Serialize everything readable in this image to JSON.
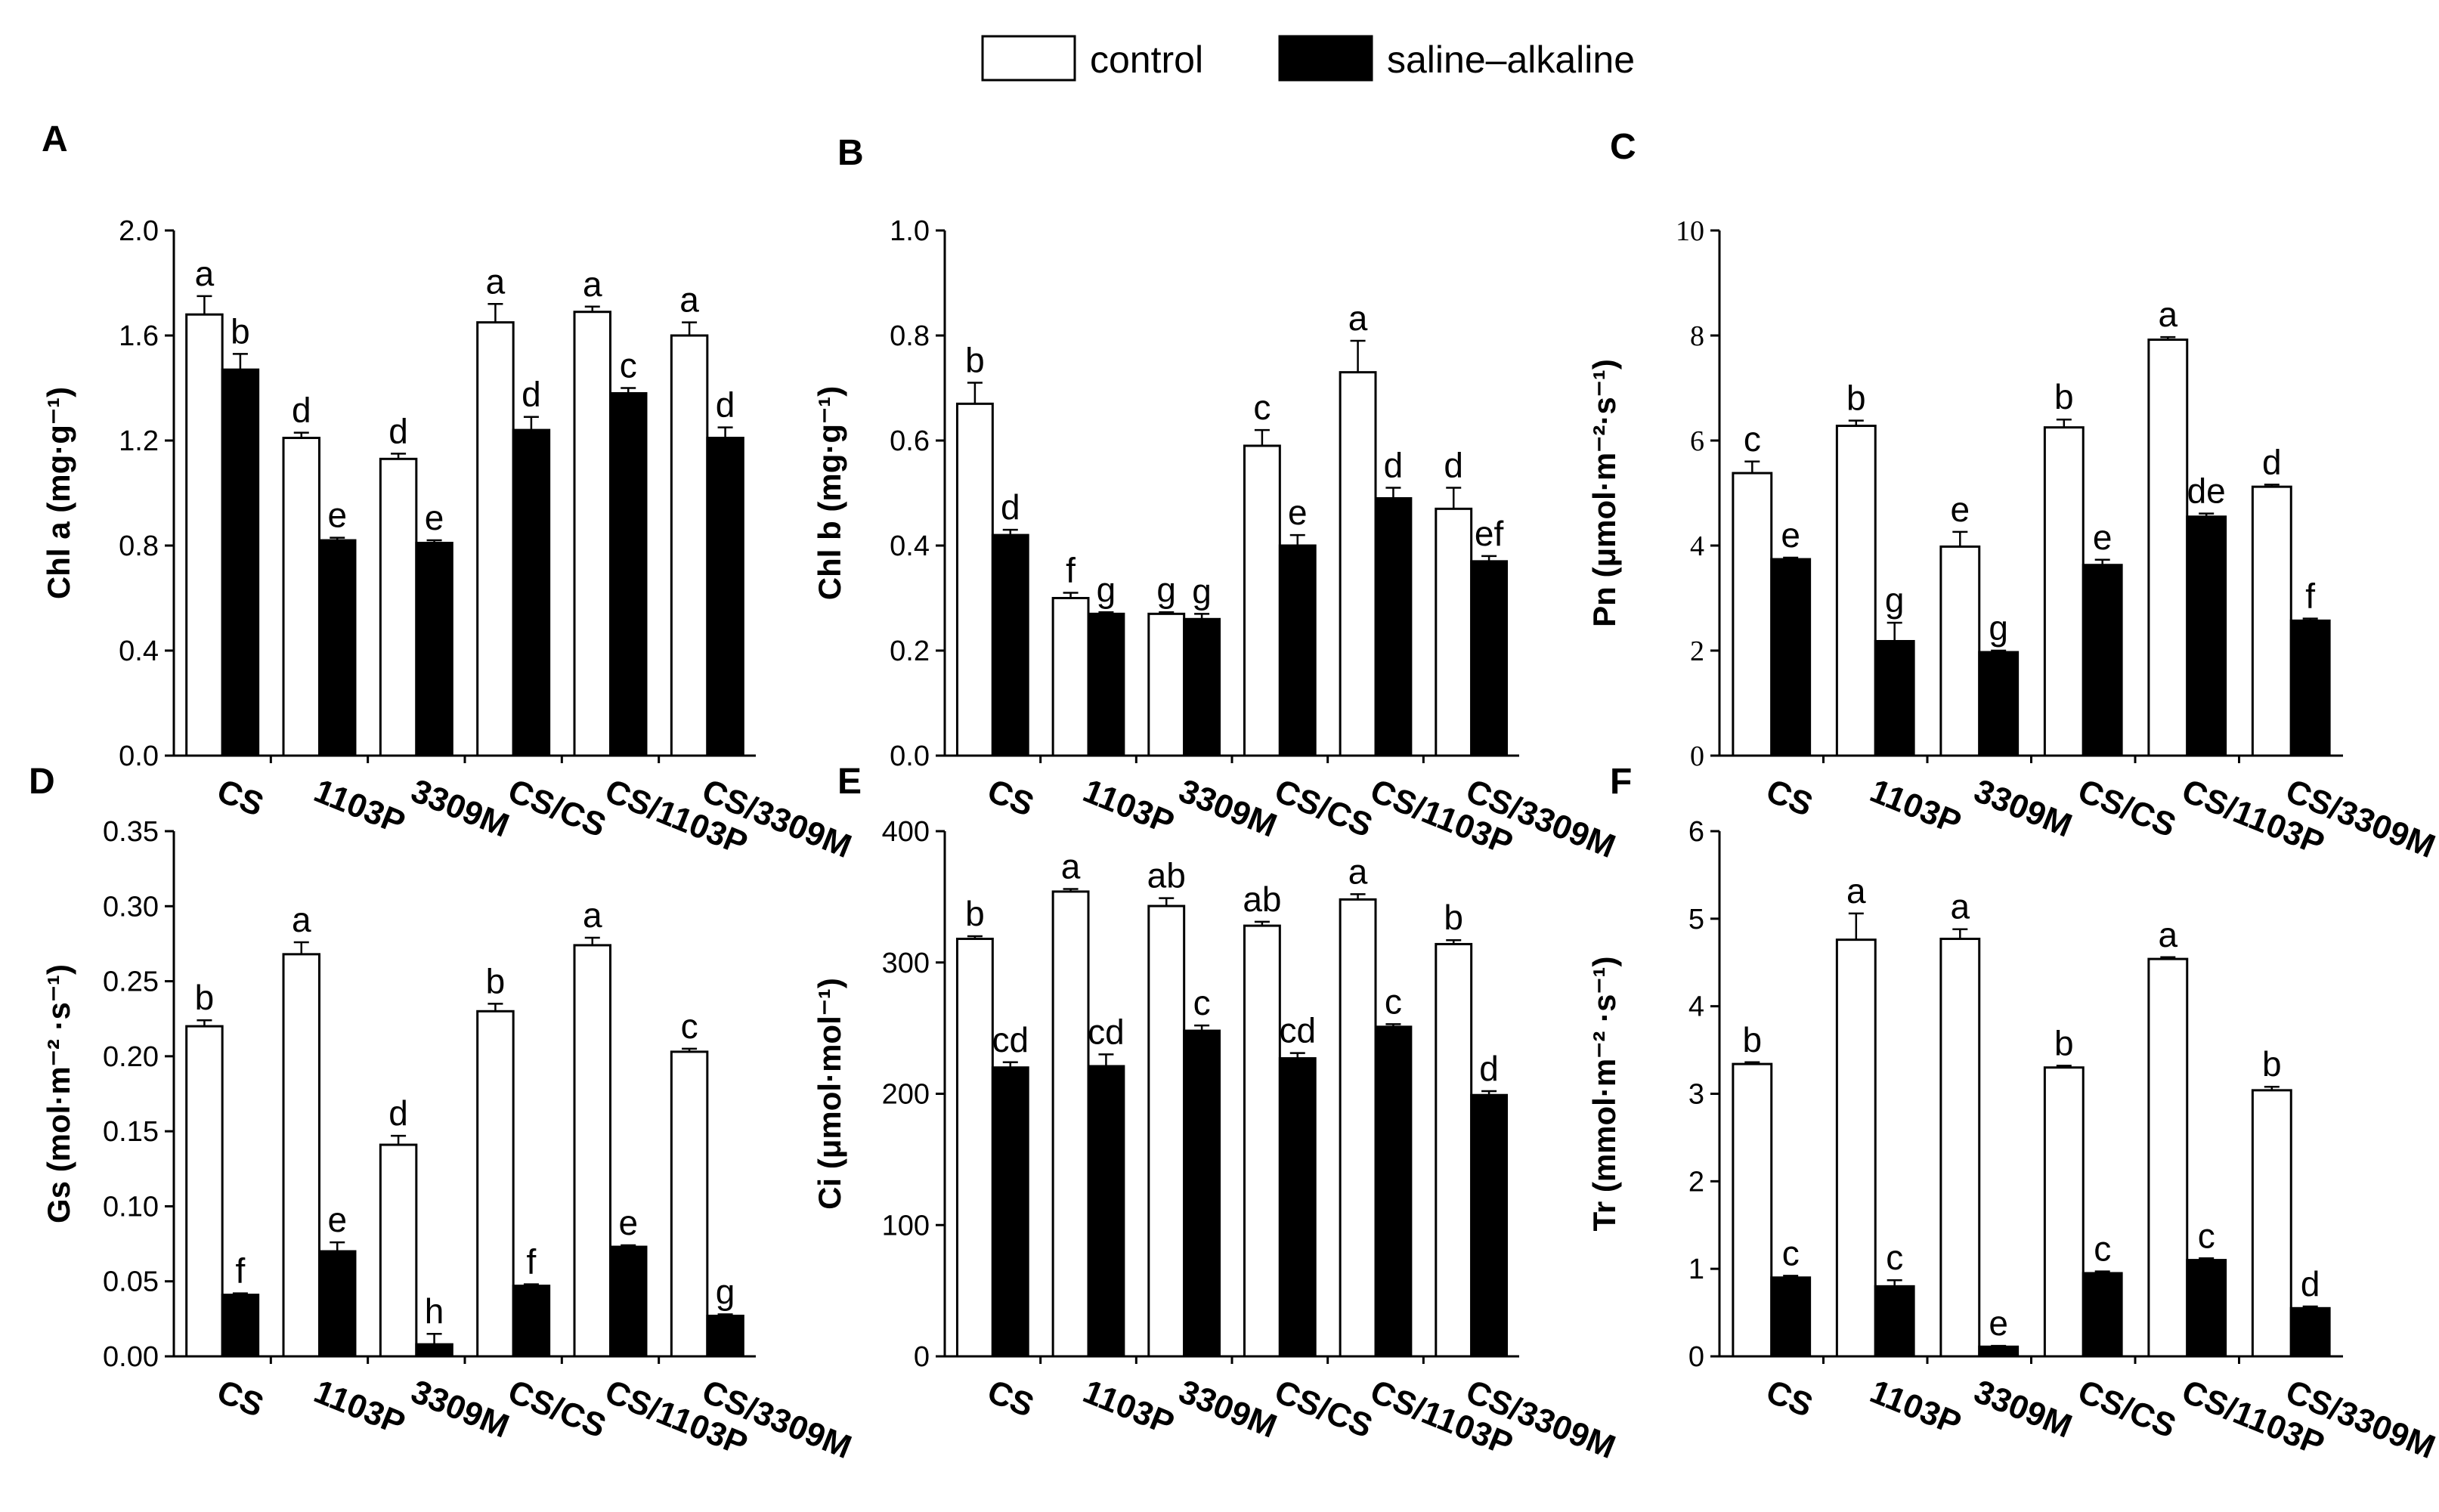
{
  "legend": [
    {
      "name": "control",
      "color": "#ffffff"
    },
    {
      "name": "saline–alkaline",
      "color": "#000000"
    }
  ],
  "chart_data": [
    {
      "panel": "A",
      "type": "bar",
      "categories": [
        "CS",
        "1103P",
        "3309M",
        "CS/CS",
        "CS/1103P",
        "CS/3309M"
      ],
      "ylabel": "Chl a (mg·g⁻¹)",
      "ylim": [
        0,
        2.0
      ],
      "yticks": [
        "0.0",
        "0.4",
        "0.8",
        "1.2",
        "1.6",
        "2.0"
      ],
      "series": [
        {
          "name": "control",
          "values": [
            1.68,
            1.21,
            1.13,
            1.65,
            1.69,
            1.6
          ],
          "errors": [
            0.07,
            0.02,
            0.02,
            0.07,
            0.02,
            0.05
          ],
          "letters": [
            "a",
            "d",
            "d",
            "a",
            "a",
            "a"
          ]
        },
        {
          "name": "saline–alkaline",
          "values": [
            1.47,
            0.82,
            0.81,
            1.24,
            1.38,
            1.21
          ],
          "errors": [
            0.06,
            0.01,
            0.01,
            0.05,
            0.02,
            0.04
          ],
          "letters": [
            "b",
            "e",
            "e",
            "d",
            "c",
            "d"
          ]
        }
      ]
    },
    {
      "panel": "B",
      "type": "bar",
      "categories": [
        "CS",
        "1103P",
        "3309M",
        "CS/CS",
        "CS/1103P",
        "CS/3309M"
      ],
      "ylabel": "Chl b (mg·g⁻¹)",
      "ylim": [
        0,
        1.0
      ],
      "yticks": [
        "0.0",
        "0.2",
        "0.4",
        "0.6",
        "0.8",
        "1.0"
      ],
      "series": [
        {
          "name": "control",
          "values": [
            0.67,
            0.3,
            0.27,
            0.59,
            0.73,
            0.47
          ],
          "errors": [
            0.04,
            0.01,
            0.003,
            0.03,
            0.06,
            0.04
          ],
          "letters": [
            "b",
            "f",
            "g",
            "c",
            "a",
            "d"
          ]
        },
        {
          "name": "saline–alkaline",
          "values": [
            0.42,
            0.27,
            0.26,
            0.4,
            0.49,
            0.37
          ],
          "errors": [
            0.01,
            0.003,
            0.01,
            0.02,
            0.02,
            0.01
          ],
          "letters": [
            "d",
            "g",
            "g",
            "e",
            "d",
            "ef"
          ]
        }
      ]
    },
    {
      "panel": "C",
      "type": "bar",
      "categories": [
        "CS",
        "1103P",
        "3309M",
        "CS/CS",
        "CS/1103P",
        "CS/3309M"
      ],
      "ylabel": "Pn (μmol·m⁻²·s⁻¹)",
      "ylim": [
        0,
        10
      ],
      "yticks": [
        "0",
        "2",
        "4",
        "6",
        "8",
        "10"
      ],
      "series": [
        {
          "name": "control",
          "values": [
            5.38,
            6.28,
            3.98,
            6.25,
            7.92,
            5.12
          ],
          "errors": [
            0.22,
            0.1,
            0.28,
            0.15,
            0.05,
            0.04
          ],
          "letters": [
            "c",
            "b",
            "e",
            "b",
            "a",
            "d"
          ]
        },
        {
          "name": "saline–alkaline",
          "values": [
            3.74,
            2.18,
            1.97,
            3.63,
            4.55,
            2.57
          ],
          "errors": [
            0.03,
            0.35,
            0.03,
            0.1,
            0.06,
            0.04
          ],
          "letters": [
            "e",
            "g",
            "g",
            "e",
            "de",
            "f"
          ]
        }
      ]
    },
    {
      "panel": "D",
      "type": "bar",
      "categories": [
        "CS",
        "1103P",
        "3309M",
        "CS/CS",
        "CS/1103P",
        "CS/3309M"
      ],
      "ylabel": "Gs (mol·m⁻² ·s⁻¹)",
      "ylim": [
        0,
        0.35
      ],
      "yticks": [
        "0.00",
        "0.05",
        "0.10",
        "0.15",
        "0.20",
        "0.25",
        "0.30",
        "0.35"
      ],
      "series": [
        {
          "name": "control",
          "values": [
            0.22,
            0.268,
            0.141,
            0.23,
            0.274,
            0.203
          ],
          "errors": [
            0.004,
            0.008,
            0.006,
            0.005,
            0.005,
            0.002
          ],
          "letters": [
            "b",
            "a",
            "d",
            "b",
            "a",
            "c"
          ]
        },
        {
          "name": "saline–alkaline",
          "values": [
            0.041,
            0.07,
            0.008,
            0.047,
            0.073,
            0.027
          ],
          "errors": [
            0.001,
            0.006,
            0.007,
            0.001,
            0.001,
            0.001
          ],
          "letters": [
            "f",
            "e",
            "h",
            "f",
            "e",
            "g"
          ]
        }
      ]
    },
    {
      "panel": "E",
      "type": "bar",
      "categories": [
        "CS",
        "1103P",
        "3309M",
        "CS/CS",
        "CS/1103P",
        "CS/3309M"
      ],
      "ylabel": "Ci (μmol·mol⁻¹)",
      "ylim": [
        0,
        400
      ],
      "yticks": [
        "0",
        "100",
        "200",
        "300",
        "400"
      ],
      "series": [
        {
          "name": "control",
          "values": [
            318,
            354,
            343,
            328,
            348,
            314
          ],
          "errors": [
            2,
            2,
            6,
            3,
            4,
            3
          ],
          "letters": [
            "b",
            "a",
            "ab",
            "ab",
            "a",
            "b"
          ]
        },
        {
          "name": "saline–alkaline",
          "values": [
            220,
            221,
            248,
            227,
            251,
            199
          ],
          "errors": [
            4,
            9,
            4,
            4,
            2,
            3
          ],
          "letters": [
            "cd",
            "cd",
            "c",
            "cd",
            "c",
            "d"
          ]
        }
      ]
    },
    {
      "panel": "F",
      "type": "bar",
      "categories": [
        "CS",
        "1103P",
        "3309M",
        "CS/CS",
        "CS/1103P",
        "CS/3309M"
      ],
      "ylabel": "Tr (mmol·m⁻² ·s⁻¹)",
      "ylim": [
        0,
        6
      ],
      "yticks": [
        "0",
        "1",
        "2",
        "3",
        "4",
        "5",
        "6"
      ],
      "series": [
        {
          "name": "control",
          "values": [
            3.34,
            4.76,
            4.77,
            3.3,
            4.54,
            3.04
          ],
          "errors": [
            0.02,
            0.3,
            0.11,
            0.02,
            0.02,
            0.04
          ],
          "letters": [
            "b",
            "a",
            "a",
            "b",
            "a",
            "b"
          ]
        },
        {
          "name": "saline–alkaline",
          "values": [
            0.9,
            0.8,
            0.11,
            0.95,
            1.1,
            0.55
          ],
          "errors": [
            0.02,
            0.07,
            0.01,
            0.02,
            0.02,
            0.02
          ],
          "letters": [
            "c",
            "c",
            "e",
            "c",
            "c",
            "d"
          ]
        }
      ]
    }
  ]
}
